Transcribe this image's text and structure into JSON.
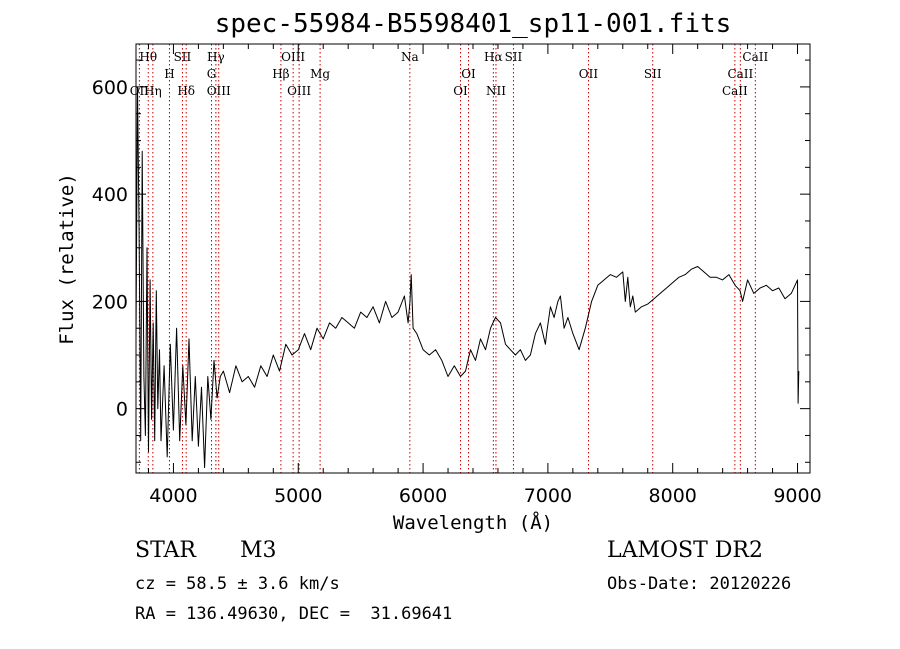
{
  "chart_data": {
    "type": "line",
    "title": "spec-55984-B5598401_sp11-001.fits",
    "xlabel": "Wavelength (Å)",
    "ylabel": "Flux (relative)",
    "xlim": [
      3700,
      9100
    ],
    "ylim": [
      -120,
      680
    ],
    "xticks": [
      4000,
      5000,
      6000,
      7000,
      8000,
      9000
    ],
    "xtick_labels": [
      "4000",
      "5000",
      "6000",
      "7000",
      "8000",
      "9000"
    ],
    "yticks": [
      0,
      200,
      400,
      600
    ],
    "ytick_labels": [
      "0",
      "200",
      "400",
      "600"
    ],
    "grid": false,
    "series": [
      {
        "color": "#000000",
        "x": [
          3700,
          3712,
          3725,
          3738,
          3750,
          3763,
          3775,
          3788,
          3800,
          3813,
          3825,
          3838,
          3850,
          3863,
          3875,
          3888,
          3900,
          3925,
          3950,
          3975,
          4000,
          4025,
          4050,
          4075,
          4100,
          4125,
          4150,
          4175,
          4200,
          4225,
          4250,
          4275,
          4300,
          4325,
          4350,
          4375,
          4400,
          4450,
          4500,
          4550,
          4600,
          4650,
          4700,
          4750,
          4800,
          4850,
          4900,
          4950,
          5000,
          5050,
          5100,
          5150,
          5200,
          5250,
          5300,
          5350,
          5400,
          5450,
          5500,
          5550,
          5600,
          5650,
          5700,
          5750,
          5800,
          5850,
          5880,
          5895,
          5905,
          5920,
          5950,
          6000,
          6050,
          6100,
          6150,
          6200,
          6250,
          6300,
          6340,
          6380,
          6420,
          6460,
          6500,
          6540,
          6580,
          6620,
          6660,
          6700,
          6740,
          6780,
          6820,
          6860,
          6900,
          6940,
          6980,
          6990,
          7020,
          7050,
          7080,
          7100,
          7130,
          7160,
          7200,
          7250,
          7300,
          7350,
          7400,
          7450,
          7500,
          7550,
          7600,
          7620,
          7640,
          7660,
          7680,
          7700,
          7750,
          7800,
          7850,
          7900,
          7950,
          8000,
          8050,
          8100,
          8150,
          8200,
          8250,
          8300,
          8350,
          8400,
          8450,
          8500,
          8540,
          8560,
          8600,
          8650,
          8700,
          8750,
          8800,
          8850,
          8900,
          8950,
          9000,
          9005,
          9010
        ],
        "y": [
          130,
          600,
          330,
          -60,
          480,
          60,
          -50,
          300,
          -80,
          240,
          -20,
          160,
          -60,
          220,
          0,
          110,
          -60,
          80,
          -90,
          120,
          -40,
          150,
          -60,
          80,
          -30,
          130,
          -60,
          60,
          -70,
          40,
          -110,
          60,
          -20,
          90,
          20,
          60,
          70,
          30,
          80,
          50,
          60,
          40,
          80,
          60,
          100,
          70,
          120,
          100,
          110,
          140,
          110,
          150,
          130,
          160,
          150,
          170,
          160,
          150,
          180,
          170,
          190,
          160,
          200,
          170,
          180,
          210,
          160,
          200,
          250,
          150,
          140,
          110,
          100,
          110,
          90,
          60,
          80,
          60,
          70,
          110,
          90,
          130,
          110,
          150,
          170,
          160,
          120,
          110,
          100,
          110,
          90,
          100,
          140,
          160,
          120,
          140,
          190,
          170,
          200,
          210,
          150,
          170,
          140,
          110,
          150,
          200,
          230,
          240,
          250,
          245,
          255,
          200,
          245,
          190,
          210,
          180,
          190,
          195,
          205,
          215,
          225,
          235,
          245,
          250,
          260,
          265,
          255,
          245,
          245,
          240,
          250,
          230,
          220,
          200,
          240,
          215,
          225,
          230,
          220,
          225,
          205,
          215,
          240,
          10,
          70
        ]
      }
    ],
    "line_ids": [
      {
        "name": "Hθ",
        "x": 3798,
        "row": 0
      },
      {
        "name": "OII",
        "x": 3727,
        "row": 2
      },
      {
        "name": "Hη",
        "x": 3835,
        "row": 2
      },
      {
        "name": "H",
        "x": 3968,
        "row": 1
      },
      {
        "name": "SII",
        "x": 4072,
        "row": 0
      },
      {
        "name": "Hδ",
        "x": 4102,
        "row": 2
      },
      {
        "name": "Hγ",
        "x": 4340,
        "row": 0
      },
      {
        "name": "G",
        "x": 4305,
        "row": 1
      },
      {
        "name": "OIII",
        "x": 4363,
        "row": 2
      },
      {
        "name": "OIII",
        "x": 4959,
        "row": 0
      },
      {
        "name": "Hβ",
        "x": 4861,
        "row": 1
      },
      {
        "name": "OIII",
        "x": 5007,
        "row": 2
      },
      {
        "name": "Mg",
        "x": 5175,
        "row": 1
      },
      {
        "name": "Na",
        "x": 5894,
        "row": 0
      },
      {
        "name": "OI",
        "x": 6364,
        "row": 1
      },
      {
        "name": "OI",
        "x": 6300,
        "row": 2
      },
      {
        "name": "Hα",
        "x": 6563,
        "row": 0
      },
      {
        "name": "SII",
        "x": 6724,
        "row": 0
      },
      {
        "name": "NII",
        "x": 6584,
        "row": 2
      },
      {
        "name": "OII",
        "x": 7325,
        "row": 1
      },
      {
        "name": "SII",
        "x": 7840,
        "row": 1
      },
      {
        "name": "CaII",
        "x": 8662,
        "row": 0
      },
      {
        "name": "CaII",
        "x": 8542,
        "row": 1
      },
      {
        "name": "CaII",
        "x": 8498,
        "row": 2
      }
    ]
  },
  "info": {
    "object_class": "STAR",
    "subclass": "M3",
    "cz": "cz = 58.5 ± 3.6 km/s",
    "radec": "RA = 136.49630, DEC =  31.69641",
    "survey": "LAMOST DR2",
    "obs_date": "Obs-Date: 20120226"
  }
}
